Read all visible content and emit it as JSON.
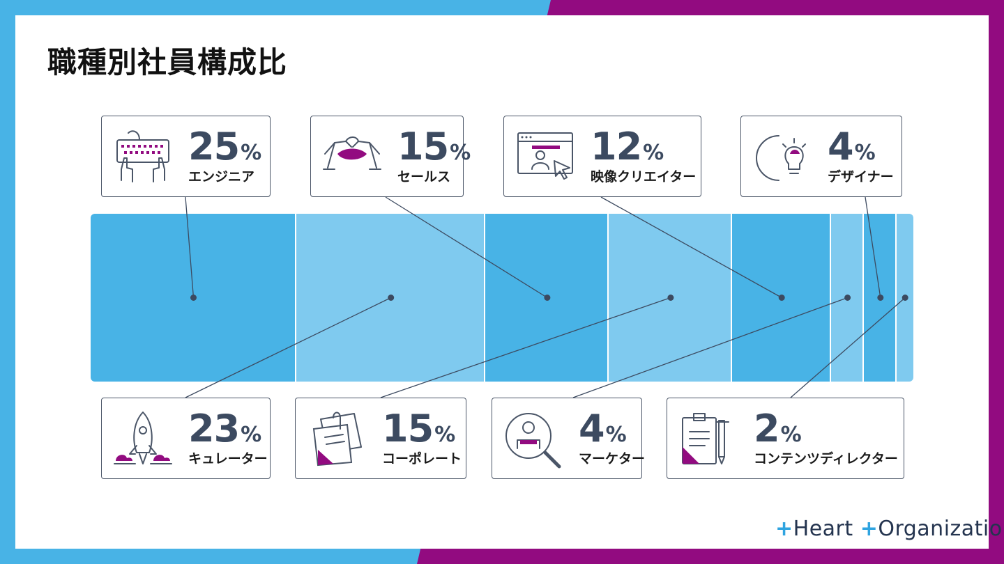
{
  "title": "職種別社員構成比",
  "brand": {
    "name_a": "Heart",
    "name_b": "Organization",
    "colors": {
      "blue": "#48b3e6",
      "light_blue": "#7fcaef",
      "purple": "#920b80",
      "navy": "#3c4a60"
    }
  },
  "chart_data": {
    "type": "bar",
    "orientation": "horizontal-stacked",
    "unit": "%",
    "categories": [
      "エンジニア",
      "キュレーター",
      "セールス",
      "コーポレート",
      "映像クリエイター",
      "マーケター",
      "デザイナー",
      "コンテンツディレクター"
    ],
    "values": [
      25,
      23,
      15,
      15,
      12,
      4,
      4,
      2
    ],
    "shades": [
      "dark",
      "light",
      "dark",
      "light",
      "dark",
      "light",
      "dark",
      "light"
    ],
    "label_positions": [
      "top",
      "bottom",
      "top",
      "bottom",
      "top",
      "bottom",
      "top",
      "bottom"
    ],
    "icons": [
      "keyboard-hands-icon",
      "rocket-icon",
      "handshake-icon",
      "sticky-notes-icon",
      "video-creator-icon",
      "magnifier-person-icon",
      "lightbulb-icon",
      "clipboard-pen-icon"
    ]
  }
}
